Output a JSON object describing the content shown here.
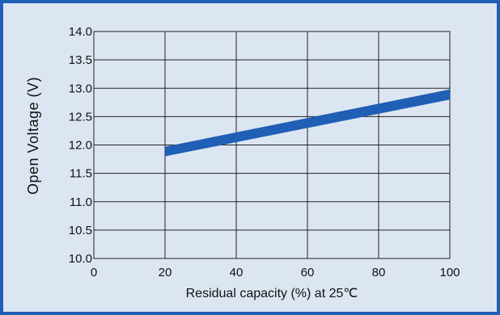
{
  "chart_data": {
    "type": "area",
    "title": "",
    "xlabel": "Residual capacity (%) at 25℃",
    "ylabel": "Open Voltage (V)",
    "xlim": [
      0,
      100
    ],
    "ylim": [
      10.0,
      14.0
    ],
    "x_ticks": [
      "0",
      "20",
      "40",
      "60",
      "80",
      "100"
    ],
    "y_ticks": [
      "10.0",
      "10.5",
      "11.0",
      "11.5",
      "12.0",
      "12.5",
      "13.0",
      "13.5",
      "14.0"
    ],
    "grid": true,
    "series": [
      {
        "x": [
          20,
          100
        ],
        "lower": [
          11.8,
          12.8
        ],
        "upper": [
          11.97,
          12.98
        ]
      }
    ],
    "colors": {
      "band": "#1f5fb6",
      "background": "#dce6f2",
      "border": "#1f5fb6",
      "grid": "#222222"
    }
  }
}
